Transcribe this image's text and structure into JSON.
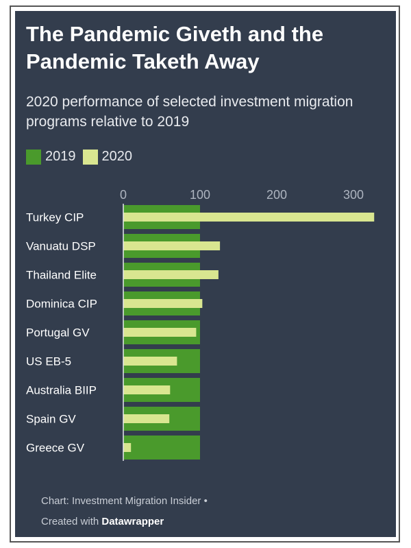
{
  "chart_data": {
    "type": "bar",
    "orientation": "horizontal",
    "title": "The Pandemic Giveth and the Pandemic Taketh Away",
    "subtitle": "2020 performance of selected investment migration programs relative to 2019",
    "categories": [
      "Turkey CIP",
      "Vanuatu DSP",
      "Thailand Elite",
      "Dominica CIP",
      "Portugal GV",
      "US EB-5",
      "Australia BIIP",
      "Spain GV",
      "Greece GV"
    ],
    "series": [
      {
        "name": "2019",
        "color": "#4a9a2c",
        "values": [
          100,
          100,
          100,
          100,
          100,
          100,
          100,
          100,
          100
        ]
      },
      {
        "name": "2020",
        "color": "#d9e690",
        "values": [
          327,
          126,
          124,
          103,
          95,
          70,
          61,
          60,
          10
        ]
      }
    ],
    "xlim": [
      0,
      330
    ],
    "xticks": [
      0,
      100,
      200,
      300
    ],
    "grid": false,
    "legend": "top-left"
  },
  "footer": {
    "source": "Chart: Investment Migration Insider •",
    "created_prefix": "Created with ",
    "created_tool": "Datawrapper"
  },
  "colors": {
    "background": "#333d4d"
  }
}
